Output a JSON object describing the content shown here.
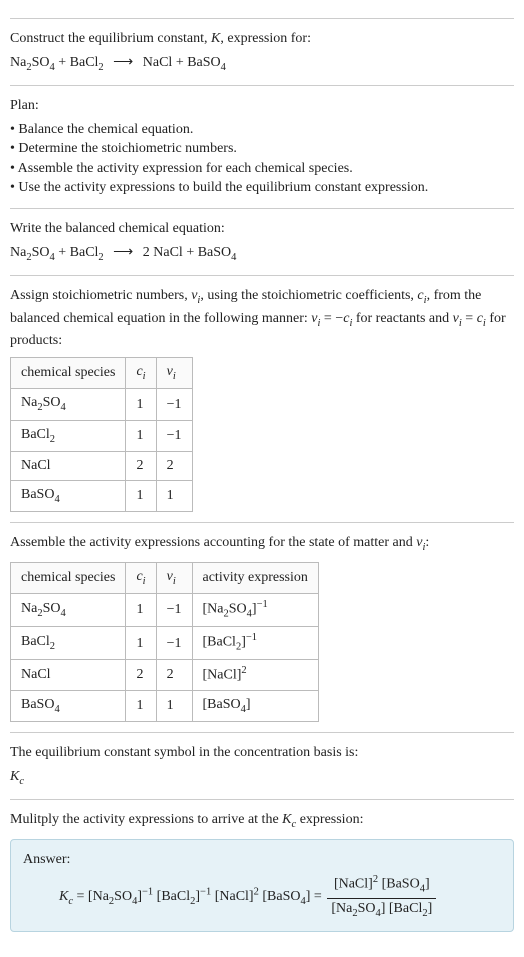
{
  "intro": {
    "line1": "Construct the equilibrium constant, ",
    "K": "K",
    "line1b": ", expression for:",
    "eq_lhs_a": "Na",
    "eq_lhs_a2": "2",
    "eq_lhs_b": "SO",
    "eq_lhs_b2": "4",
    "plus": " + ",
    "eq_lhs_c": "BaCl",
    "eq_lhs_c2": "2",
    "arrow": "⟶",
    "eq_rhs_a": "NaCl",
    "eq_rhs_b": "BaSO",
    "eq_rhs_b2": "4"
  },
  "plan": {
    "title": "Plan:",
    "items": [
      "Balance the chemical equation.",
      "Determine the stoichiometric numbers.",
      "Assemble the activity expression for each chemical species.",
      "Use the activity expressions to build the equilibrium constant expression."
    ]
  },
  "balanced": {
    "title": "Write the balanced chemical equation:",
    "coef2": "2 "
  },
  "stoich": {
    "p1a": "Assign stoichiometric numbers, ",
    "nu": "ν",
    "i": "i",
    "p1b": ", using the stoichiometric coefficients, ",
    "c": "c",
    "p1c": ", from the balanced chemical equation in the following manner: ",
    "eq1": " = −",
    "p1d": " for reactants and ",
    "eq2": " = ",
    "p1e": " for products:",
    "headers": [
      "chemical species",
      "cᵢ",
      "νᵢ"
    ],
    "rows": [
      {
        "sp_a": "Na",
        "sp_a2": "2",
        "sp_b": "SO",
        "sp_b2": "4",
        "c": "1",
        "n": "−1"
      },
      {
        "sp_a": "BaCl",
        "sp_a2": "2",
        "sp_b": "",
        "sp_b2": "",
        "c": "1",
        "n": "−1"
      },
      {
        "sp_a": "NaCl",
        "sp_a2": "",
        "sp_b": "",
        "sp_b2": "",
        "c": "2",
        "n": "2"
      },
      {
        "sp_a": "BaSO",
        "sp_a2": "4",
        "sp_b": "",
        "sp_b2": "",
        "c": "1",
        "n": "1"
      }
    ]
  },
  "activity": {
    "title": "Assemble the activity expressions accounting for the state of matter and ",
    "title_end": ":",
    "headers": [
      "chemical species",
      "cᵢ",
      "νᵢ",
      "activity expression"
    ],
    "rows": [
      {
        "sp_a": "Na",
        "sp_a2": "2",
        "sp_b": "SO",
        "sp_b2": "4",
        "c": "1",
        "n": "−1",
        "act_a": "[Na",
        "act_a2": "2",
        "act_b": "SO",
        "act_b2": "4",
        "act_close": "]",
        "exp": "−1"
      },
      {
        "sp_a": "BaCl",
        "sp_a2": "2",
        "sp_b": "",
        "sp_b2": "",
        "c": "1",
        "n": "−1",
        "act_a": "[BaCl",
        "act_a2": "2",
        "act_b": "",
        "act_b2": "",
        "act_close": "]",
        "exp": "−1"
      },
      {
        "sp_a": "NaCl",
        "sp_a2": "",
        "sp_b": "",
        "sp_b2": "",
        "c": "2",
        "n": "2",
        "act_a": "[NaCl",
        "act_a2": "",
        "act_b": "",
        "act_b2": "",
        "act_close": "]",
        "exp": "2"
      },
      {
        "sp_a": "BaSO",
        "sp_a2": "4",
        "sp_b": "",
        "sp_b2": "",
        "c": "1",
        "n": "1",
        "act_a": "[BaSO",
        "act_a2": "4",
        "act_b": "",
        "act_b2": "",
        "act_close": "]",
        "exp": ""
      }
    ]
  },
  "symbol": {
    "line": "The equilibrium constant symbol in the concentration basis is:",
    "Kc_K": "K",
    "Kc_c": "c"
  },
  "final": {
    "title": "Mulitply the activity expressions to arrive at the ",
    "title2": " expression:",
    "answer_label": "Answer:",
    "eq": " = ",
    "na": "[Na",
    "so": "SO",
    "bacl": "[BaCl",
    "nacl": "[NaCl]",
    "baso": "[BaSO",
    "s2": "2",
    "s4": "4",
    "close": "]",
    "m1": "−1",
    "p2": "2",
    "space": " "
  },
  "colors": {
    "answer_bg": "#e6f2f7",
    "answer_border": "#b8d4e0",
    "rule": "#cccccc",
    "table_border": "#bbbbbb"
  }
}
